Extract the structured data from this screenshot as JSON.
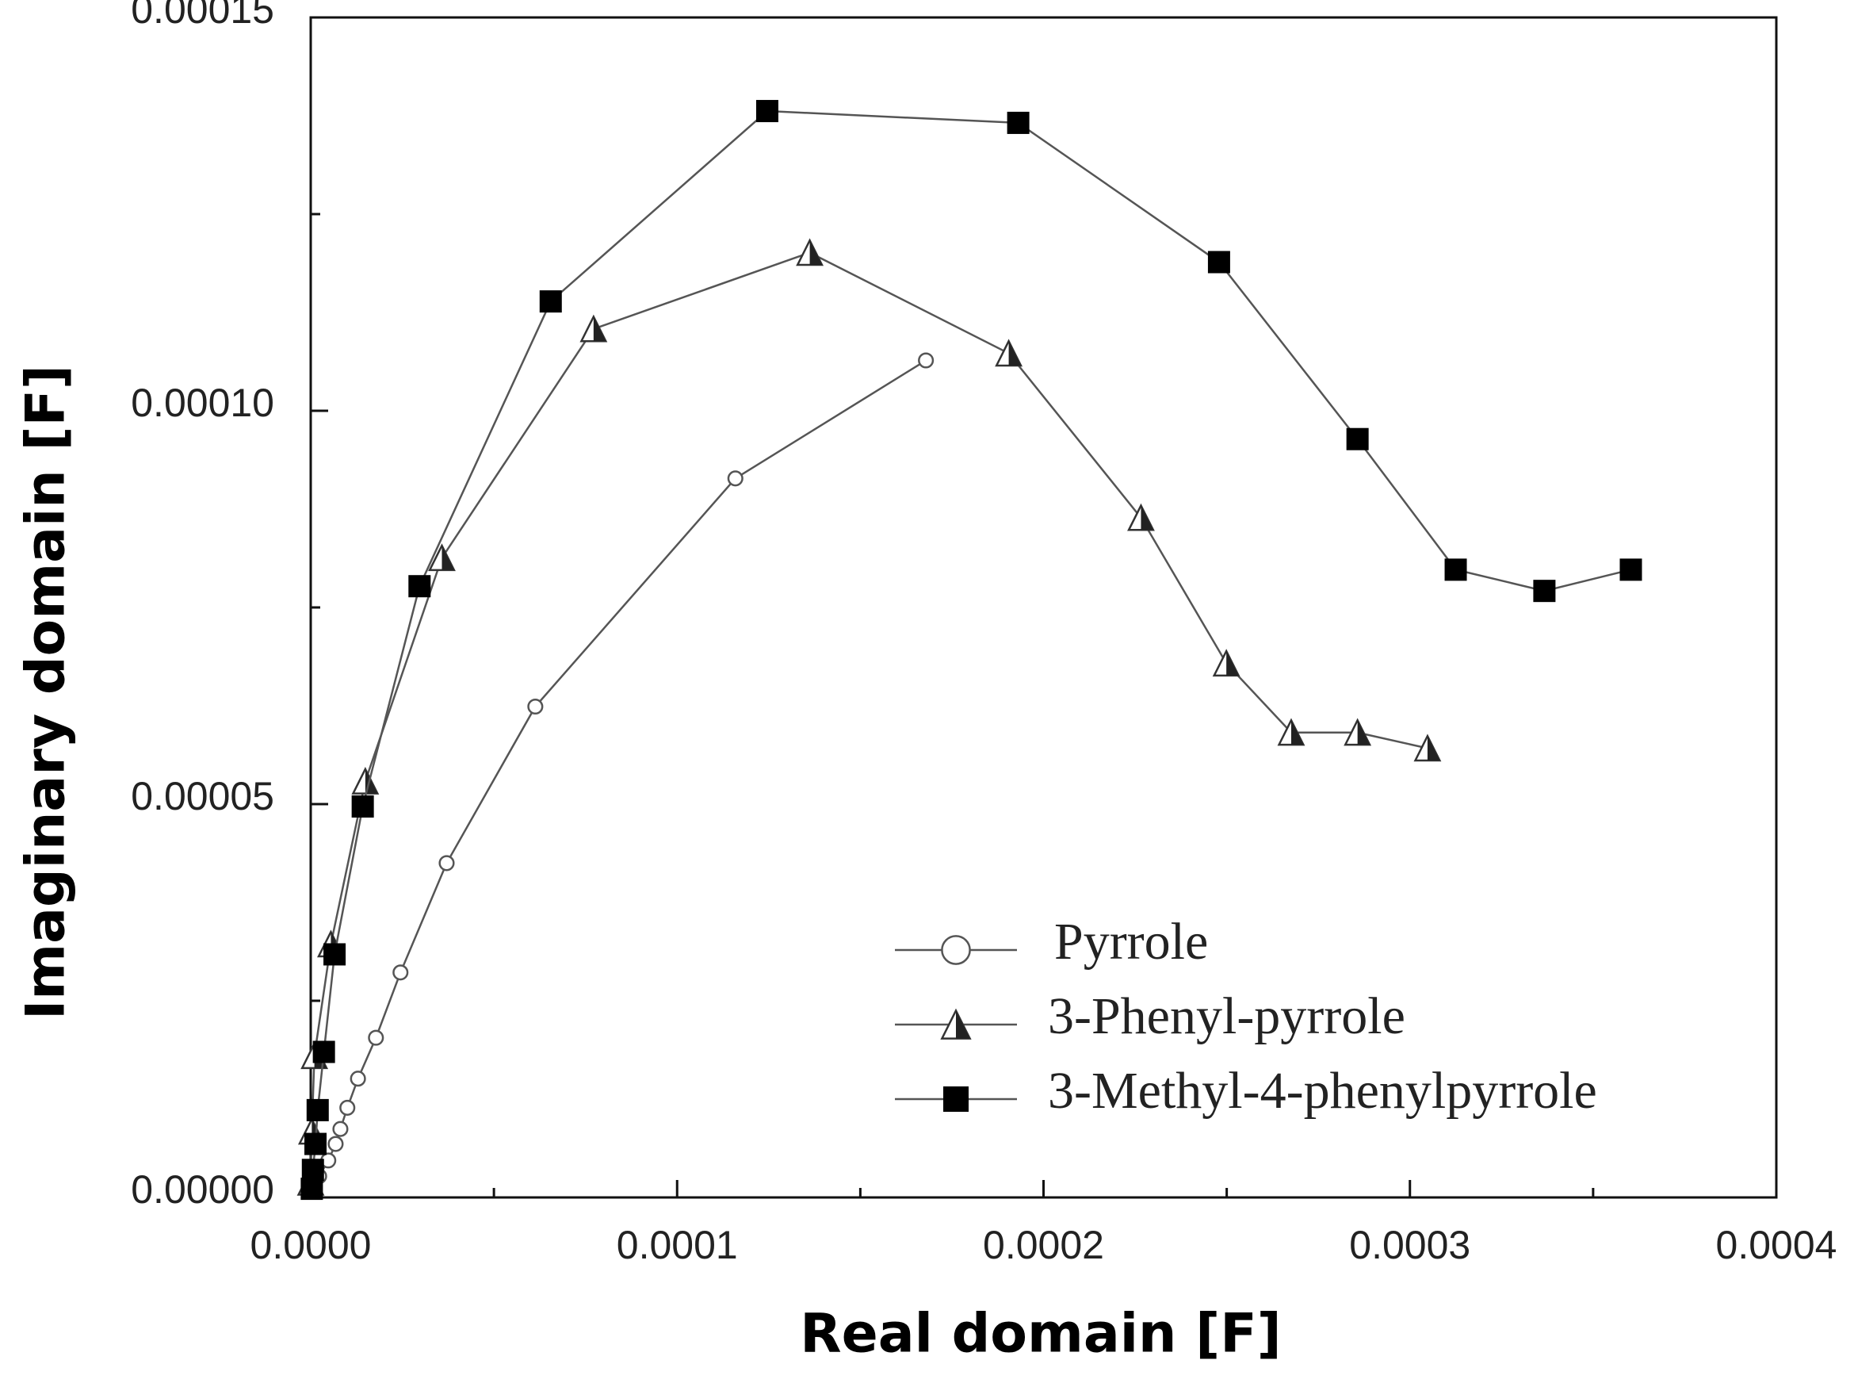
{
  "chart_data": {
    "type": "scatter-line",
    "x_label": "Real domain [F]",
    "y_label": "Imaginary domain [F]",
    "xlim": [
      0,
      0.0004
    ],
    "ylim": [
      0,
      0.00015
    ],
    "xticks": [
      {
        "value": 0,
        "label": "0.0000"
      },
      {
        "value": 0.0001,
        "label": "0.0001"
      },
      {
        "value": 0.0002,
        "label": "0.0002"
      },
      {
        "value": 0.0003,
        "label": "0.0003"
      },
      {
        "value": 0.0004,
        "label": "0.0004"
      }
    ],
    "xticks_minor": [
      5e-05,
      0.00015,
      0.00025,
      0.00035
    ],
    "yticks": [
      {
        "value": 0,
        "label": "0.00000"
      },
      {
        "value": 5e-05,
        "label": "0.00005"
      },
      {
        "value": 0.0001,
        "label": "0.00010"
      },
      {
        "value": 0.00015,
        "label": "0.00015"
      }
    ],
    "yticks_minor": [
      2.5e-05,
      7.5e-05,
      0.000125
    ],
    "legend": "lower right",
    "series": [
      {
        "name": "Pyrrole",
        "color": "#555555",
        "marker": "circle",
        "x": [
          1e-06,
          2.3e-06,
          4.8e-06,
          6.8e-06,
          8.1e-06,
          1e-05,
          1.29e-05,
          1.78e-05,
          2.45e-05,
          3.71e-05,
          6.13e-05,
          0.0001159,
          0.0001679
        ],
        "values": [
          1.1e-06,
          2.7e-06,
          4.7e-06,
          6.8e-06,
          8.7e-06,
          1.14e-05,
          1.51e-05,
          2.03e-05,
          2.86e-05,
          4.25e-05,
          6.24e-05,
          9.14e-05,
          0.0001064
        ]
      },
      {
        "name": "3-Phenyl-pyrrole",
        "color": "#555555",
        "marker": "triangle",
        "x": [
          0,
          3e-07,
          1e-06,
          5.5e-06,
          1.49e-05,
          3.58e-05,
          7.72e-05,
          0.0001362,
          0.0001905,
          0.0002266,
          0.0002499,
          0.0002676,
          0.0002857,
          0.0003048
        ],
        "values": [
          1.9e-06,
          8.4e-06,
          1.8e-05,
          3.22e-05,
          5.29e-05,
          8.13e-05,
          0.0001104,
          0.0001201,
          0.0001073,
          8.64e-05,
          6.79e-05,
          5.91e-05,
          5.91e-05,
          5.71e-05
        ]
      },
      {
        "name": "3-Methyl-4-phenylpyrrole",
        "color": "#555555",
        "marker": "square",
        "x": [
          3e-07,
          6e-07,
          1.3e-06,
          1.9e-06,
          3.6e-06,
          6.5e-06,
          1.42e-05,
          2.97e-05,
          6.55e-05,
          0.0001246,
          0.0001931,
          0.0002479,
          0.0002857,
          0.0003125,
          0.0003367,
          0.0003603
        ],
        "values": [
          1.1e-06,
          3.5e-06,
          6.8e-06,
          1.11e-05,
          1.85e-05,
          3.09e-05,
          4.97e-05,
          7.77e-05,
          0.0001139,
          0.0001381,
          0.0001366,
          0.0001189,
          9.64e-05,
          7.98e-05,
          7.71e-05,
          7.98e-05
        ]
      }
    ]
  }
}
